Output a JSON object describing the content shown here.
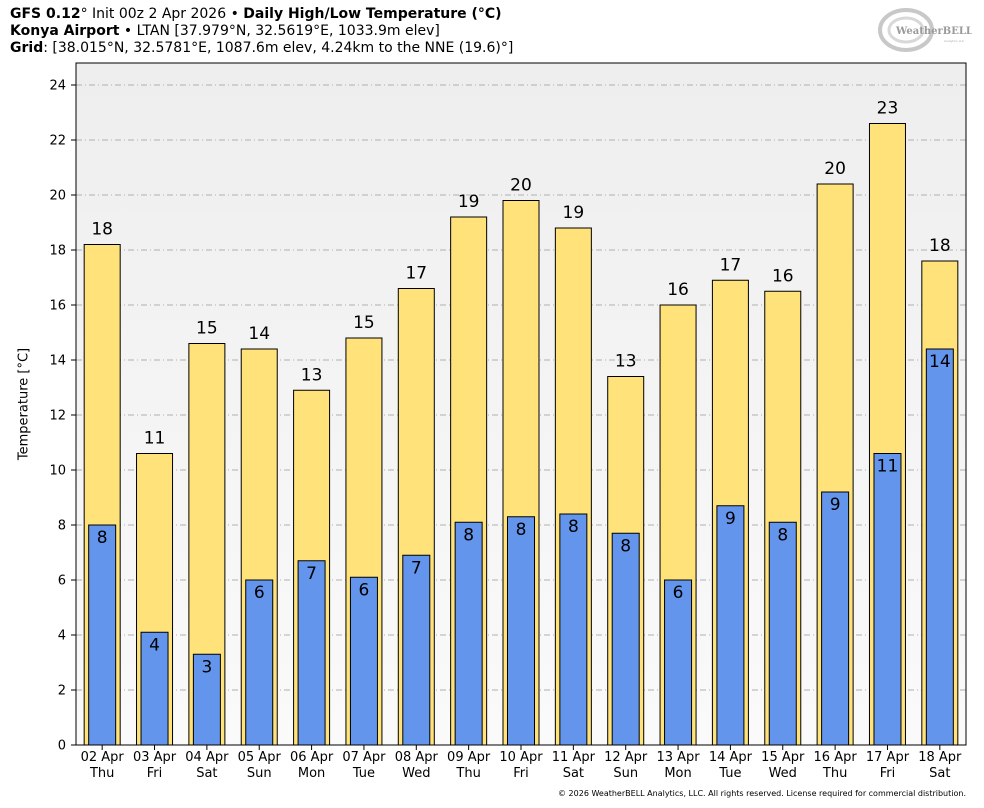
{
  "header": {
    "model": "GFS 0.12",
    "init": "° Init 00z 2 Apr 2026",
    "bullet": " • ",
    "product": "Daily High/Low Temperature (°C)",
    "station_name": "Konya Airport",
    "station_info": " • LTAN [37.979°N, 32.5619°E, 1033.9m elev]",
    "grid_label": "Grid",
    "grid_info": ": [38.015°N, 32.5781°E, 1087.6m elev, 4.24km to the NNE (19.6)°]"
  },
  "logo": {
    "text": "WeatherBELL",
    "sub": "Analytics LLC"
  },
  "footer": "© 2026 WeatherBELL Analytics, LLC. All rights reserved. License required for commercial distribution.",
  "colors": {
    "high": "#ffe27a",
    "low": "#6495ed",
    "plot_bg_top": "#eeeeee",
    "plot_bg_bottom": "#fafafa",
    "grid": "#b0b0b0"
  },
  "chart_data": {
    "type": "bar",
    "ylabel": "Temperature [°C]",
    "ylim": [
      0,
      24.8
    ],
    "yticks": [
      0,
      2,
      4,
      6,
      8,
      10,
      12,
      14,
      16,
      18,
      20,
      22,
      24
    ],
    "grid": true,
    "categories": [
      {
        "date": "02 Apr",
        "day": "Thu"
      },
      {
        "date": "03 Apr",
        "day": "Fri"
      },
      {
        "date": "04 Apr",
        "day": "Sat"
      },
      {
        "date": "05 Apr",
        "day": "Sun"
      },
      {
        "date": "06 Apr",
        "day": "Mon"
      },
      {
        "date": "07 Apr",
        "day": "Tue"
      },
      {
        "date": "08 Apr",
        "day": "Wed"
      },
      {
        "date": "09 Apr",
        "day": "Thu"
      },
      {
        "date": "10 Apr",
        "day": "Fri"
      },
      {
        "date": "11 Apr",
        "day": "Sat"
      },
      {
        "date": "12 Apr",
        "day": "Sun"
      },
      {
        "date": "13 Apr",
        "day": "Mon"
      },
      {
        "date": "14 Apr",
        "day": "Tue"
      },
      {
        "date": "15 Apr",
        "day": "Wed"
      },
      {
        "date": "16 Apr",
        "day": "Thu"
      },
      {
        "date": "17 Apr",
        "day": "Fri"
      },
      {
        "date": "18 Apr",
        "day": "Sat"
      }
    ],
    "series": [
      {
        "values": [
          18.2,
          10.6,
          14.6,
          14.4,
          12.9,
          14.8,
          16.6,
          19.2,
          19.8,
          18.8,
          13.4,
          16.0,
          16.9,
          16.5,
          20.4,
          22.6,
          17.6
        ],
        "labels": [
          "18",
          "11",
          "15",
          "14",
          "13",
          "15",
          "17",
          "19",
          "20",
          "19",
          "13",
          "16",
          "17",
          "16",
          "20",
          "23",
          "18"
        ]
      },
      {
        "values": [
          8.0,
          4.1,
          3.3,
          6.0,
          6.7,
          6.1,
          6.9,
          8.1,
          8.3,
          8.4,
          7.7,
          6.0,
          8.7,
          8.1,
          9.2,
          10.6,
          14.4
        ],
        "labels": [
          "8",
          "4",
          "3",
          "6",
          "7",
          "6",
          "7",
          "8",
          "8",
          "8",
          "8",
          "6",
          "9",
          "8",
          "9",
          "11",
          "14"
        ]
      }
    ]
  }
}
